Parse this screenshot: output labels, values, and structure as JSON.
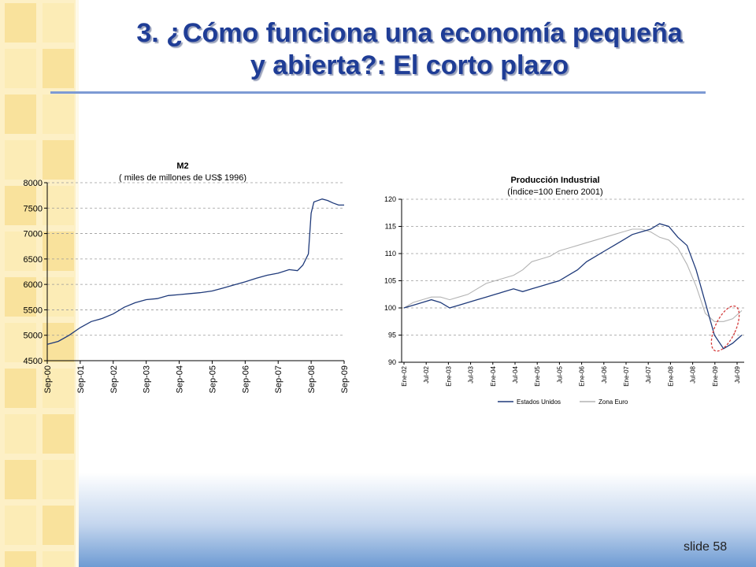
{
  "slide": {
    "title_line1": "3. ¿Cómo funciona una economía pequeña",
    "title_line2": "y abierta?: El corto plazo",
    "number": "slide 58"
  },
  "colors": {
    "title": "#1f3d96",
    "stripe_light": "#fdf0c6",
    "stripe_dark": "#f5d77a",
    "us_series": "#1f3a7a",
    "euro_series": "#b4b4b4",
    "highlight_ellipse": "#d43b3b"
  },
  "chart_data": [
    {
      "type": "line",
      "title": "M2",
      "subtitle": "( miles de millones de US$ 1996)",
      "ylim": [
        4500,
        8000
      ],
      "yticks": [
        4500,
        5000,
        5500,
        6000,
        6500,
        7000,
        7500,
        8000
      ],
      "xticks": [
        "Sep-00",
        "Sep-01",
        "Sep-02",
        "Sep-03",
        "Sep-04",
        "Sep-05",
        "Sep-06",
        "Sep-07",
        "Sep-08",
        "Sep-09"
      ],
      "grid": true,
      "legend": "none",
      "series": [
        {
          "x": [
            "Sep-00",
            "Jan-01",
            "May-01",
            "Sep-01",
            "Jan-02",
            "May-02",
            "Sep-02",
            "Jan-03",
            "May-03",
            "Sep-03",
            "Jan-04",
            "May-04",
            "Sep-04",
            "Jan-05",
            "May-05",
            "Sep-05",
            "Jan-06",
            "May-06",
            "Sep-06",
            "Jan-07",
            "May-07",
            "Sep-07",
            "Jan-08",
            "Apr-08",
            "Jun-08",
            "Aug-08",
            "Sep-08",
            "Oct-08",
            "Nov-08",
            "Jan-09",
            "Mar-09",
            "May-09",
            "Jul-09",
            "Sep-09"
          ],
          "values": [
            4820,
            4880,
            5000,
            5150,
            5270,
            5330,
            5420,
            5550,
            5640,
            5700,
            5720,
            5780,
            5800,
            5820,
            5840,
            5870,
            5930,
            5990,
            6050,
            6120,
            6180,
            6220,
            6290,
            6270,
            6380,
            6600,
            7400,
            7620,
            7640,
            7680,
            7650,
            7600,
            7560,
            7560
          ]
        }
      ]
    },
    {
      "type": "line",
      "title": "Producción Industrial",
      "subtitle": "(Índice=100 Enero 2001)",
      "ylim": [
        90,
        120
      ],
      "yticks": [
        90,
        95,
        100,
        105,
        110,
        115,
        120
      ],
      "xticks": [
        "Ene-02",
        "Jul-02",
        "Ene-03",
        "Jul-03",
        "Ene-04",
        "Jul-04",
        "Ene-05",
        "Jul-05",
        "Ene-06",
        "Jul-06",
        "Ene-07",
        "Jul-07",
        "Ene-08",
        "Jul-08",
        "Ene-09",
        "Jul-09"
      ],
      "grid": true,
      "legend": "bottom",
      "series": [
        {
          "name": "Estados Unidos",
          "values": [
            100,
            100.5,
            101,
            101.5,
            101,
            100,
            100.5,
            101,
            101.5,
            102,
            102.5,
            103,
            103.5,
            103,
            103.5,
            104,
            104.5,
            105,
            106,
            107,
            108.5,
            109.5,
            110.5,
            111.5,
            112.5,
            113.5,
            114,
            114.5,
            115.5,
            115,
            113,
            111.5,
            107,
            101,
            95,
            92.5,
            93.5,
            95
          ]
        },
        {
          "name": "Zona Euro",
          "values": [
            100,
            101,
            101.5,
            102,
            102,
            101.5,
            102,
            102.5,
            103.5,
            104.5,
            105,
            105.5,
            106,
            107,
            108.5,
            109,
            109.5,
            110.5,
            111,
            111.5,
            112,
            112.5,
            113,
            113.5,
            114,
            114.5,
            114.5,
            114,
            113,
            112.5,
            111,
            108,
            104,
            99,
            97.5,
            97.5,
            98,
            99.5
          ]
        }
      ]
    }
  ]
}
